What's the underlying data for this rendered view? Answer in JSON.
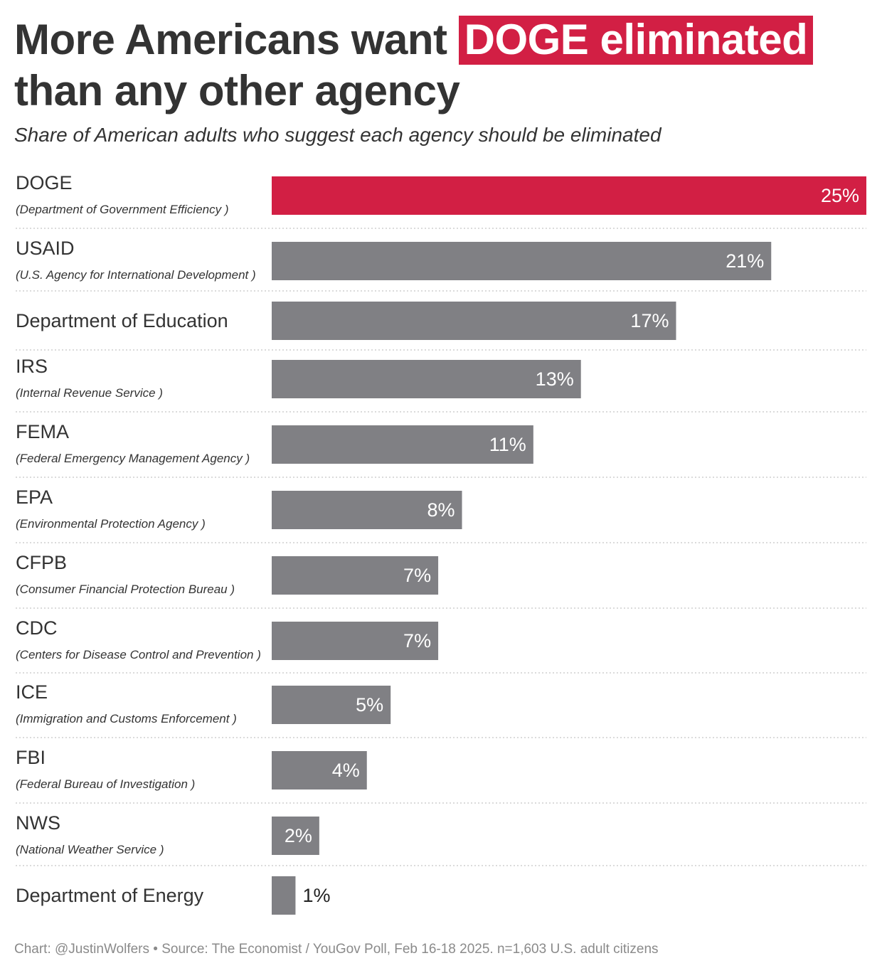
{
  "title": {
    "line1_prefix": "More Americans want ",
    "line1_highlight": "DOGE eliminated",
    "line2": "than any other agency"
  },
  "subtitle": "Share of American adults who suggest each agency should be eliminated",
  "source": "Chart: @JustinWolfers • Source: The Economist / YouGov Poll, Feb 16-18 2025. n=1,603 U.S. adult citizens",
  "colors": {
    "highlight": "#d21f44",
    "bar": "#808084",
    "text": "#333333",
    "source": "#8a8a8a"
  },
  "chart_data": {
    "type": "bar",
    "orientation": "horizontal",
    "xlim": [
      0,
      25
    ],
    "grid": false,
    "categories": [
      "DOGE",
      "USAID",
      "Department of Education",
      "IRS",
      "FEMA",
      "EPA",
      "CFPB",
      "CDC",
      "ICE",
      "FBI",
      "NWS",
      "Department of Energy"
    ],
    "sublabels": [
      "(Department of Government Efficiency )",
      "(U.S. Agency for International Development )",
      "",
      "(Internal Revenue Service )",
      "(Federal Emergency Management Agency )",
      "(Environmental Protection Agency )",
      "(Consumer Financial Protection Bureau )",
      "(Centers for Disease Control and Prevention )",
      "(Immigration and Customs Enforcement )",
      "(Federal Bureau of Investigation )",
      "(National Weather Service )",
      ""
    ],
    "values": [
      25,
      21,
      17,
      13,
      11,
      8,
      7,
      7,
      5,
      4,
      2,
      1
    ],
    "value_labels": [
      "25%",
      "21%",
      "17%",
      "13%",
      "11%",
      "8%",
      "7%",
      "7%",
      "5%",
      "4%",
      "2%",
      "1%"
    ],
    "highlight_index": 0
  }
}
